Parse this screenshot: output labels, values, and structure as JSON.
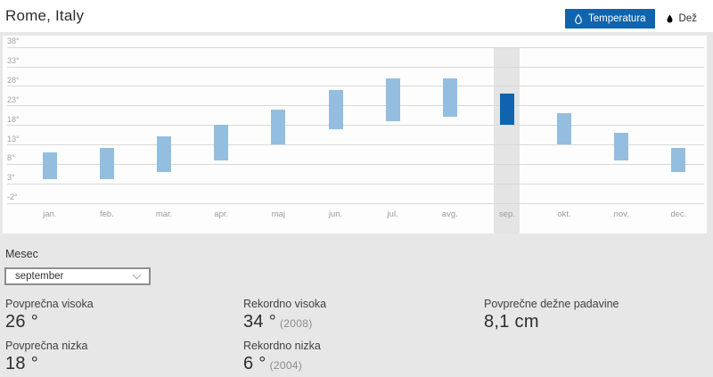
{
  "header": {
    "title": "Rome, Italy",
    "temperature_button": "Temperatura",
    "rain_button": "Dež"
  },
  "colors": {
    "accent_blue": "#0f64ad",
    "bar_light_blue": "#94bedf",
    "highlight_band_gray": "#e4e4e4",
    "gridline_gray": "#d9d9d9",
    "page_background": "#e7e7e7"
  },
  "chart_data": {
    "type": "bar",
    "subtype": "temperature-range",
    "categories": [
      "jan.",
      "feb.",
      "mar.",
      "apr.",
      "maj",
      "jun.",
      "jul.",
      "avg.",
      "sep.",
      "okt.",
      "nov.",
      "dec."
    ],
    "series": [
      {
        "name": "povprečna nizka",
        "values": [
          4,
          4,
          6,
          9,
          13,
          17,
          19,
          20,
          18,
          13,
          9,
          6
        ]
      },
      {
        "name": "povprečna visoka",
        "values": [
          11,
          12,
          15,
          18,
          22,
          27,
          30,
          30,
          26,
          21,
          16,
          12
        ]
      }
    ],
    "unit": "°C",
    "ylim": [
      -2,
      38
    ],
    "yticks": [
      38,
      33,
      28,
      23,
      18,
      13,
      8,
      3,
      -2
    ],
    "ytick_suffix": "°",
    "highlighted_category": "sep.",
    "grid": true,
    "legend": "none"
  },
  "controls": {
    "month_label": "Mesec",
    "selected_month": "september"
  },
  "details": {
    "avg_high": {
      "label": "Povprečna visoka",
      "value": "26 °"
    },
    "record_high": {
      "label": "Rekordno visoka",
      "value": "34 °",
      "note": "(2008)"
    },
    "avg_rain": {
      "label": "Povprečne dežne padavine",
      "value": "8,1 cm"
    },
    "avg_low": {
      "label": "Povprečna nizka",
      "value": "18 °"
    },
    "record_low": {
      "label": "Rekordno nizka",
      "value": "6 °",
      "note": "(2004)"
    }
  }
}
